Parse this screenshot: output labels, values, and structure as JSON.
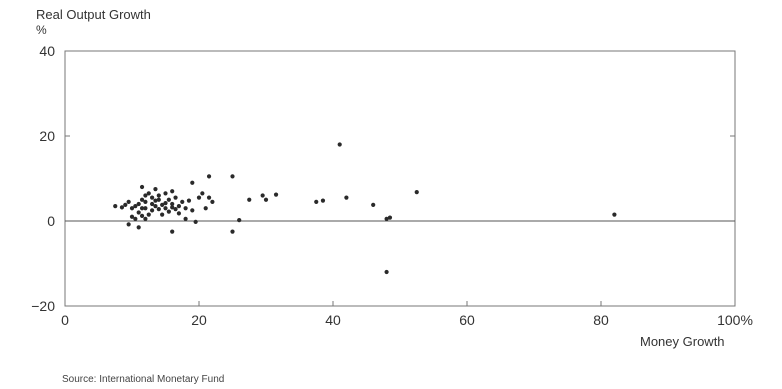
{
  "chart_data": {
    "type": "scatter",
    "ylabel": "Real Output Growth",
    "yunit": "%",
    "xlabel": "Money Growth",
    "source": "Source: International Monetary Fund",
    "xlim": [
      0,
      100
    ],
    "ylim": [
      -20,
      40
    ],
    "x_ticks": [
      {
        "v": 0,
        "label": "0"
      },
      {
        "v": 20,
        "label": "20"
      },
      {
        "v": 40,
        "label": "40"
      },
      {
        "v": 60,
        "label": "60"
      },
      {
        "v": 80,
        "label": "80"
      },
      {
        "v": 100,
        "label": "100%"
      }
    ],
    "y_ticks": [
      {
        "v": 40,
        "label": "40"
      },
      {
        "v": 20,
        "label": "20"
      },
      {
        "v": 0,
        "label": "0"
      },
      {
        "v": -20,
        "label": "−20"
      }
    ],
    "zero_line": true,
    "grid": false,
    "points": [
      [
        7.5,
        3.5
      ],
      [
        8.5,
        3.2
      ],
      [
        9,
        3.8
      ],
      [
        9.5,
        4.5
      ],
      [
        10,
        3.0
      ],
      [
        10,
        1.0
      ],
      [
        10.5,
        0.5
      ],
      [
        10.5,
        3.5
      ],
      [
        11,
        4.0
      ],
      [
        11,
        2.0
      ],
      [
        11.5,
        5.0
      ],
      [
        11.5,
        3.0
      ],
      [
        11.5,
        8.0
      ],
      [
        12,
        6.0
      ],
      [
        12,
        4.5
      ],
      [
        12,
        3.0
      ],
      [
        12,
        0.5
      ],
      [
        12.5,
        1.5
      ],
      [
        12.5,
        6.5
      ],
      [
        13,
        4.0
      ],
      [
        13,
        2.5
      ],
      [
        13,
        5.5
      ],
      [
        13.5,
        3.5
      ],
      [
        13.5,
        4.8
      ],
      [
        13.5,
        7.5
      ],
      [
        14,
        6.0
      ],
      [
        14,
        2.8
      ],
      [
        14,
        5.0
      ],
      [
        14.5,
        3.8
      ],
      [
        14.5,
        1.5
      ],
      [
        15,
        4.2
      ],
      [
        15,
        6.5
      ],
      [
        15,
        3.0
      ],
      [
        15.5,
        5.0
      ],
      [
        15.5,
        2.2
      ],
      [
        16,
        4.0
      ],
      [
        16,
        3.2
      ],
      [
        16,
        7.0
      ],
      [
        16.5,
        2.8
      ],
      [
        16.5,
        5.5
      ],
      [
        17,
        3.5
      ],
      [
        17,
        1.8
      ],
      [
        17.5,
        4.5
      ],
      [
        18,
        3.0
      ],
      [
        18,
        0.5
      ],
      [
        18.5,
        4.8
      ],
      [
        19,
        9.0
      ],
      [
        19,
        2.5
      ],
      [
        19.5,
        -0.2
      ],
      [
        20,
        5.5
      ],
      [
        20.5,
        6.5
      ],
      [
        21,
        3.0
      ],
      [
        21.5,
        5.5
      ],
      [
        21.5,
        10.5
      ],
      [
        22,
        4.5
      ],
      [
        25,
        10.5
      ],
      [
        25,
        -2.5
      ],
      [
        26,
        0.2
      ],
      [
        27.5,
        5.0
      ],
      [
        29.5,
        6.0
      ],
      [
        30,
        5.0
      ],
      [
        31.5,
        6.2
      ],
      [
        37.5,
        4.5
      ],
      [
        38.5,
        4.8
      ],
      [
        41,
        18.0
      ],
      [
        42,
        5.5
      ],
      [
        46,
        3.8
      ],
      [
        48,
        0.5
      ],
      [
        48,
        -12.0
      ],
      [
        48.5,
        0.8
      ],
      [
        52.5,
        6.8
      ],
      [
        82,
        1.5
      ],
      [
        9.5,
        -0.8
      ],
      [
        11,
        -1.5
      ],
      [
        16,
        -2.5
      ],
      [
        11.5,
        1.2
      ]
    ]
  }
}
